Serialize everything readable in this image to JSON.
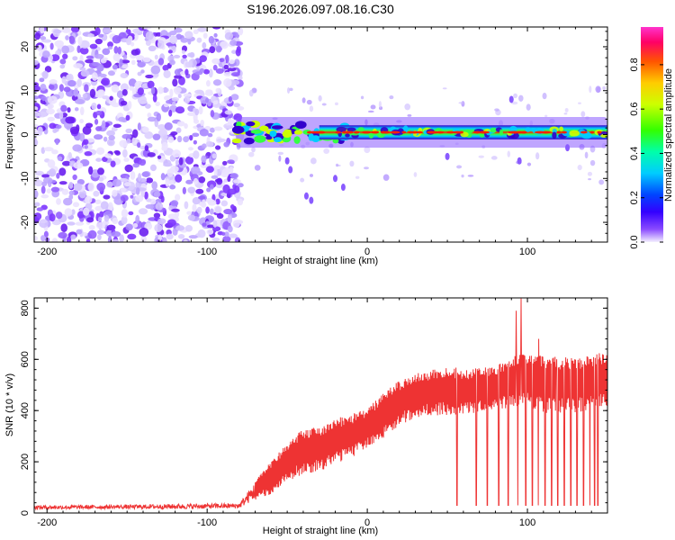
{
  "title": "S196.2026.097.08.16.C30",
  "chart_data": [
    {
      "type": "heatmap",
      "xlabel": "Height of straight line (km)",
      "ylabel": "Frequency (Hz)",
      "xlim": [
        -208,
        150
      ],
      "ylim": [
        -24.5,
        24.5
      ],
      "xticks": [
        -200,
        -100,
        0,
        100
      ],
      "yticks": [
        -20,
        -10,
        0,
        10,
        20
      ],
      "noise_region": [
        -208,
        -79
      ],
      "signal_band": {
        "x_start": -82,
        "x_end": 150,
        "center_hz": 0.5
      },
      "speckles": [
        [
          -50,
          -6
        ],
        [
          -48,
          -8
        ],
        [
          -38,
          -14
        ],
        [
          -35,
          -15
        ],
        [
          -20,
          -10
        ],
        [
          -15,
          -12
        ],
        [
          50,
          -5
        ],
        [
          90,
          8
        ],
        [
          95,
          -6
        ],
        [
          125,
          -3
        ]
      ],
      "colorbar": {
        "label": "Normalized spectral amplitude",
        "range": [
          0,
          0.97
        ],
        "ticks": [
          "0.0",
          "0.2",
          "0.4",
          "0.6",
          "0.8"
        ],
        "tick_values": [
          0,
          0.2,
          0.4,
          0.6,
          0.8
        ]
      }
    },
    {
      "type": "line",
      "xlabel": "Height of straight line (km)",
      "ylabel": "SNR (10 * v/v)",
      "xlim": [
        -208,
        150
      ],
      "ylim": [
        0,
        840
      ],
      "xticks": [
        -200,
        -100,
        0,
        100
      ],
      "yticks": [
        0,
        200,
        400,
        600,
        800
      ],
      "color": "#ee3333",
      "envelope": [
        [
          -208,
          22,
          8
        ],
        [
          -150,
          24,
          8
        ],
        [
          -110,
          26,
          10
        ],
        [
          -80,
          28,
          10
        ],
        [
          -68,
          100,
          40
        ],
        [
          -60,
          140,
          60
        ],
        [
          -50,
          200,
          70
        ],
        [
          -40,
          240,
          80
        ],
        [
          -30,
          250,
          80
        ],
        [
          -20,
          280,
          80
        ],
        [
          -10,
          300,
          80
        ],
        [
          0,
          330,
          70
        ],
        [
          10,
          380,
          80
        ],
        [
          20,
          430,
          80
        ],
        [
          30,
          460,
          80
        ],
        [
          40,
          470,
          80
        ],
        [
          50,
          480,
          90
        ],
        [
          60,
          470,
          80
        ],
        [
          70,
          480,
          80
        ],
        [
          80,
          490,
          80
        ],
        [
          90,
          510,
          90
        ],
        [
          100,
          520,
          100
        ],
        [
          110,
          500,
          100
        ],
        [
          120,
          500,
          100
        ],
        [
          130,
          500,
          100
        ],
        [
          140,
          510,
          100
        ],
        [
          150,
          520,
          100
        ]
      ],
      "dropouts": [
        56,
        68,
        75,
        82,
        88,
        94,
        99,
        103,
        107,
        111,
        115,
        119,
        123,
        127,
        131,
        135,
        139,
        142,
        144
      ],
      "dropout_floor": 30,
      "spikes": [
        [
          93,
          790
        ],
        [
          96,
          838
        ],
        [
          107,
          680
        ],
        [
          118,
          560
        ]
      ]
    }
  ]
}
